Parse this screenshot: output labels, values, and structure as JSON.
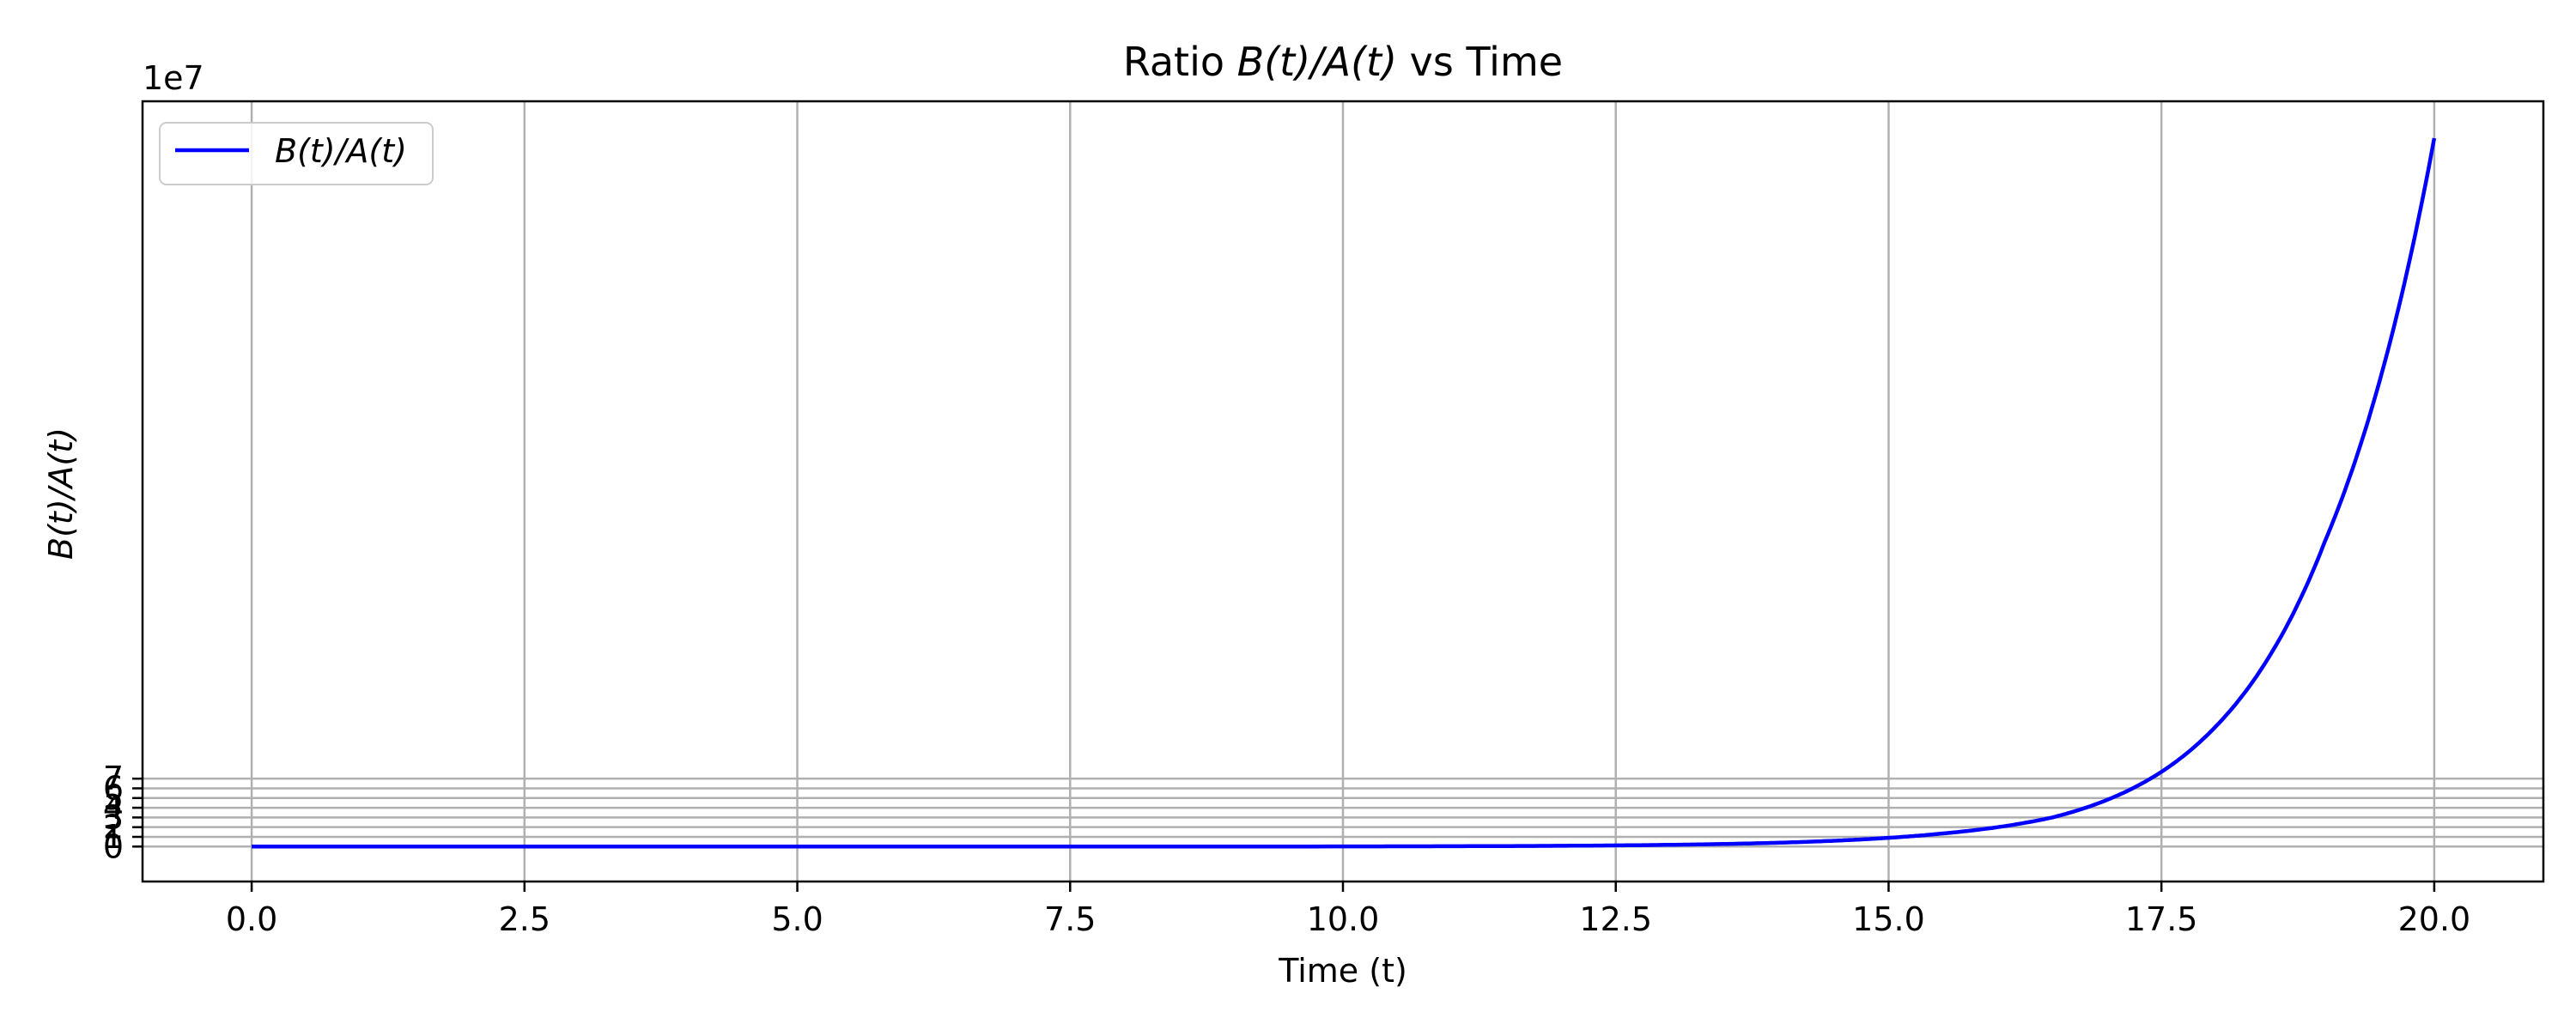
{
  "chart_data": {
    "type": "line",
    "title_prefix": "Ratio ",
    "title_math": "B(t)/A(t)",
    "title_suffix": " vs Time",
    "xlabel": "Time (t)",
    "ylabel": "B(t)/A(t)",
    "y_offset_label": "1e7",
    "xlim": [
      -1.0,
      21.0
    ],
    "ylim": [
      -3.6,
      76.8
    ],
    "y_scale_note": "y values in units of 1e7",
    "x_ticks": [
      0.0,
      2.5,
      5.0,
      7.5,
      10.0,
      12.5,
      15.0,
      17.5,
      20.0
    ],
    "x_tick_labels": [
      "0.0",
      "2.5",
      "5.0",
      "7.5",
      "10.0",
      "12.5",
      "15.0",
      "17.5",
      "20.0"
    ],
    "y_ticks": [
      0,
      1,
      2,
      3,
      4,
      5,
      6,
      7
    ],
    "y_tick_labels": [
      "0",
      "1",
      "2",
      "3",
      "4",
      "5",
      "6",
      "7"
    ],
    "grid": true,
    "legend_position": "upper-left",
    "series": [
      {
        "name": "B(t)/A(t)",
        "color": "#0000ff",
        "x": [
          0,
          2.5,
          5,
          7.5,
          10,
          11,
          12,
          12.5,
          13,
          13.5,
          14,
          14.5,
          15,
          15.5,
          16,
          16.5,
          17,
          17.5,
          18,
          18.5,
          19,
          19.5,
          20
        ],
        "y": [
          0,
          0,
          0.0002,
          0.002,
          0.016,
          0.036,
          0.08,
          0.12,
          0.18,
          0.27,
          0.4,
          0.6,
          0.9,
          1.35,
          2.0,
          3.0,
          4.8,
          7.7,
          12.4,
          19.8,
          31.5,
          48.0,
          73.0
        ]
      }
    ]
  }
}
